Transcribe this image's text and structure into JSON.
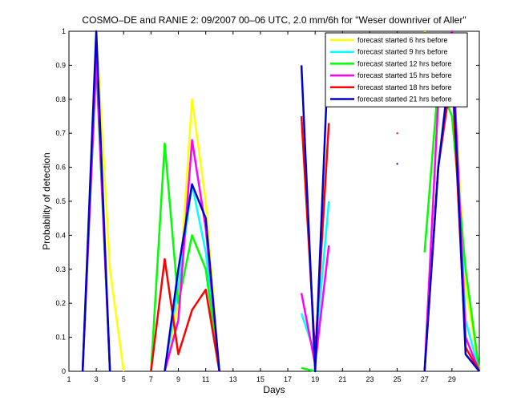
{
  "chart_data": {
    "type": "line",
    "title": "COSMO–DE and RANIE 2: 09/2007 00–06 UTC, 2.0 mm/6h for \"Weser downriver of Aller\"",
    "xlabel": "Days",
    "ylabel": "Probability of detection",
    "xlim": [
      1,
      31
    ],
    "ylim": [
      0,
      1
    ],
    "x_ticks": [
      1,
      3,
      5,
      7,
      9,
      11,
      13,
      15,
      17,
      19,
      21,
      23,
      25,
      27,
      29
    ],
    "x_tick_labels": [
      "1",
      "3",
      "5",
      "7",
      "9",
      "11",
      "13",
      "15",
      "17",
      "19",
      "21",
      "23",
      "25",
      "27",
      "29"
    ],
    "y_ticks": [
      0,
      0.1,
      0.2,
      0.3,
      0.4,
      0.5,
      0.6,
      0.7,
      0.8,
      0.9,
      1
    ],
    "y_tick_labels": [
      "0",
      "0.1",
      "0.2",
      "0.3",
      "0.4",
      "0.5",
      "0.6",
      "0.7",
      "0.8",
      "0.9",
      "1"
    ],
    "legend_position": "top-right",
    "grid": false,
    "series": [
      {
        "name": "forecast started 6 hrs before",
        "color": "#ffff00",
        "segments": [
          [
            [
              2,
              0
            ],
            [
              3,
              1.0
            ],
            [
              4,
              0.3
            ],
            [
              5,
              0
            ]
          ],
          [
            [
              8,
              0
            ],
            [
              9,
              0.2
            ],
            [
              10,
              0.8
            ],
            [
              11,
              0.5
            ],
            [
              12,
              0
            ]
          ],
          [
            [
              27,
              1.0
            ],
            [
              28,
              0.85
            ],
            [
              29,
              0.95
            ],
            [
              30,
              0.25
            ],
            [
              31,
              0
            ]
          ]
        ],
        "points": []
      },
      {
        "name": "forecast started 9 hrs before",
        "color": "#00ffff",
        "segments": [
          [
            [
              2,
              0
            ],
            [
              3,
              0.95
            ],
            [
              4,
              0
            ]
          ],
          [
            [
              8,
              0
            ],
            [
              9,
              0.25
            ],
            [
              10,
              0.55
            ],
            [
              11,
              0.35
            ],
            [
              12,
              0
            ]
          ],
          [
            [
              18,
              0.17
            ],
            [
              19,
              0.05
            ],
            [
              20,
              0.5
            ]
          ],
          [
            [
              27,
              0.92
            ],
            [
              28,
              0.9
            ],
            [
              29,
              0.97
            ],
            [
              30,
              0.15
            ],
            [
              31,
              0
            ]
          ]
        ],
        "points": [
          [
            25,
            0.89
          ]
        ]
      },
      {
        "name": "forecast started 12 hrs before",
        "color": "#00ff00",
        "segments": [
          [
            [
              2,
              0
            ],
            [
              3,
              0.9
            ],
            [
              4,
              0
            ]
          ],
          [
            [
              7,
              0
            ],
            [
              8,
              0.67
            ],
            [
              9,
              0.2
            ],
            [
              10,
              0.4
            ],
            [
              11,
              0.3
            ],
            [
              12,
              0
            ]
          ],
          [
            [
              18,
              0.01
            ],
            [
              19,
              0
            ]
          ],
          [
            [
              27,
              0.35
            ],
            [
              28,
              0.85
            ],
            [
              29,
              0.75
            ],
            [
              30,
              0.3
            ],
            [
              31,
              0
            ]
          ]
        ],
        "points": [
          [
            25,
            0.79
          ]
        ]
      },
      {
        "name": "forecast started 15 hrs before",
        "color": "#ff00ff",
        "segments": [
          [
            [
              2,
              0
            ],
            [
              3,
              0.92
            ],
            [
              4,
              0
            ]
          ],
          [
            [
              8,
              0
            ],
            [
              9,
              0.15
            ],
            [
              10,
              0.68
            ],
            [
              11,
              0.42
            ],
            [
              12,
              0
            ]
          ],
          [
            [
              18,
              0.23
            ],
            [
              19,
              0.02
            ],
            [
              20,
              0.37
            ]
          ],
          [
            [
              27,
              0
            ],
            [
              28,
              0.8
            ],
            [
              29,
              1.0
            ],
            [
              30,
              0.1
            ],
            [
              31,
              0
            ]
          ]
        ],
        "points": [
          [
            25,
            0.94
          ]
        ]
      },
      {
        "name": "forecast started 18 hrs before",
        "color": "#ff0000",
        "segments": [
          [
            [
              7,
              0
            ],
            [
              8,
              0.33
            ],
            [
              9,
              0.05
            ],
            [
              10,
              0.18
            ],
            [
              11,
              0.24
            ],
            [
              12,
              0
            ]
          ],
          [
            [
              18,
              0.75
            ],
            [
              19,
              0.05
            ],
            [
              20,
              0.73
            ]
          ],
          [
            [
              27,
              0
            ],
            [
              28,
              0.6
            ],
            [
              29,
              0.88
            ],
            [
              30,
              0.07
            ],
            [
              31,
              0
            ]
          ]
        ],
        "points": [
          [
            25,
            0.7
          ]
        ]
      },
      {
        "name": "forecast started 21 hrs before",
        "color": "#0000cc",
        "segments": [
          [
            [
              2,
              0
            ],
            [
              3,
              1.0
            ],
            [
              4,
              0
            ]
          ],
          [
            [
              8,
              0
            ],
            [
              9,
              0.3
            ],
            [
              10,
              0.55
            ],
            [
              11,
              0.45
            ],
            [
              12,
              0
            ]
          ],
          [
            [
              18,
              0.9
            ],
            [
              19,
              0
            ],
            [
              20,
              0.97
            ]
          ],
          [
            [
              27,
              0
            ],
            [
              28,
              0.6
            ],
            [
              29,
              0.95
            ],
            [
              30,
              0.05
            ],
            [
              31,
              0
            ]
          ]
        ],
        "points": [
          [
            25,
            0.61
          ]
        ]
      }
    ]
  }
}
